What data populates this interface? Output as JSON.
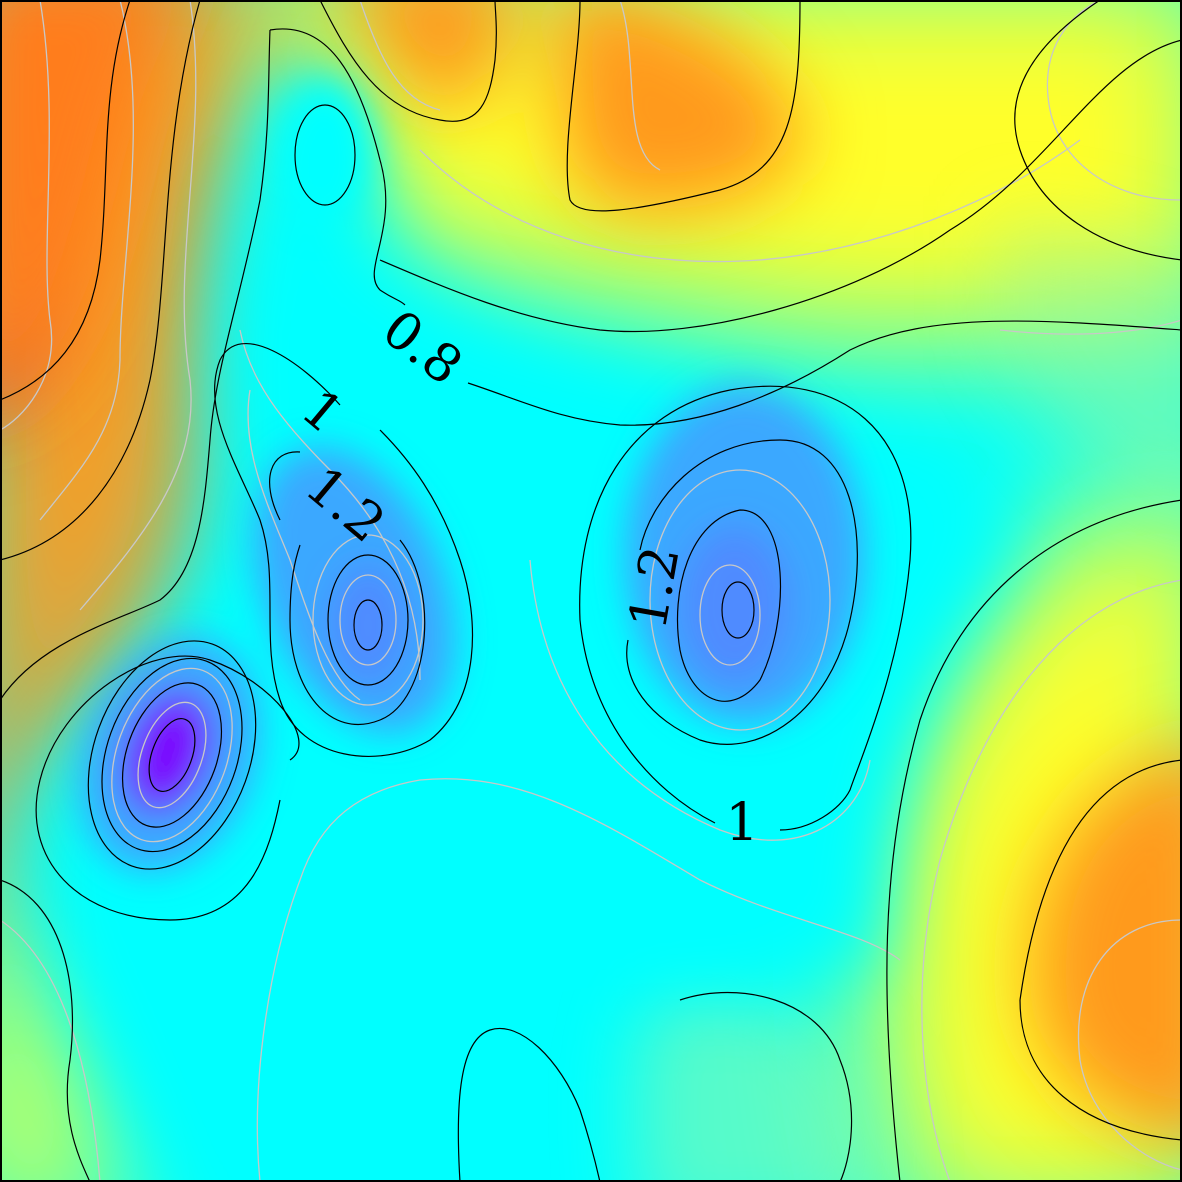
{
  "chart_data": {
    "type": "heatmap",
    "title": "",
    "xlabel": "",
    "ylabel": "",
    "grid": false,
    "legend": "none",
    "colormap": [
      "#7a00ff",
      "#4f8bff",
      "#00ffff",
      "#ffff2a",
      "#ff9a1a",
      "#ff3a1f"
    ],
    "contour_labels": [
      "0.8",
      "1",
      "1.2",
      "1.2",
      "1"
    ],
    "major_contour_color": "#000000",
    "minor_contour_color": "#c8c8c8",
    "frame_color": "#000000"
  }
}
